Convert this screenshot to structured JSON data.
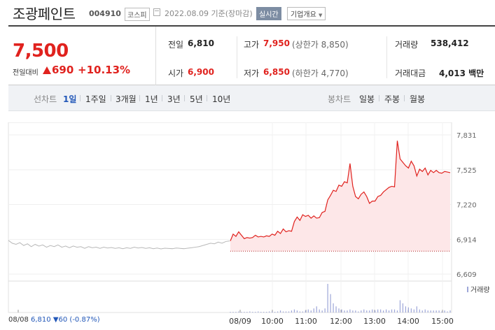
{
  "header": {
    "name": "조광페인트",
    "code": "004910",
    "market": "코스피",
    "date": "2022.08.09 기준(장마감)",
    "realtime": "실시간",
    "company_info": "기업개요"
  },
  "quote": {
    "price": "7,500",
    "change_label": "전일대비",
    "change_value": "690",
    "change_pct": "+10.13%",
    "prev_close_label": "전일",
    "prev_close": "6,810",
    "high_label": "고가",
    "high": "7,950",
    "upper_limit": "(상한가 8,850)",
    "volume_label": "거래량",
    "volume": "538,412",
    "open_label": "시가",
    "open": "6,900",
    "low_label": "저가",
    "low": "6,850",
    "lower_limit": "(하한가 4,770)",
    "amount_label": "거래대금",
    "amount": "4,013 백만"
  },
  "periods": {
    "line_label": "선차트",
    "line_items": [
      "1일",
      "1주일",
      "3개월",
      "1년",
      "3년",
      "5년",
      "10년"
    ],
    "selected": "1일",
    "candle_label": "봉차트",
    "candle_items": [
      "일봉",
      "주봉",
      "월봉"
    ]
  },
  "footer": {
    "prev_date": "08/08",
    "prev_info": "6,810 ▼60 (-0.87%)"
  },
  "colors": {
    "up": "#e0221e",
    "down": "#2257b8",
    "fill": "#fde7e8",
    "prev_line": "#b8b8b8",
    "volume": "#9da6d8"
  },
  "chart_data": {
    "type": "line",
    "title": "",
    "y_ticks": [
      "7,831",
      "7,525",
      "7,220",
      "6,914",
      "6,609"
    ],
    "y_tick_values": [
      7831,
      7525,
      7220,
      6914,
      6609
    ],
    "ylim": [
      6609,
      7831
    ],
    "x_ticks": [
      "08/08",
      "08/09",
      "10:00",
      "11:00",
      "12:00",
      "13:00",
      "14:00",
      "15:00"
    ],
    "reference_line": 6810,
    "grid": true,
    "volume_legend": "거래량",
    "series": [
      {
        "name": "08/08",
        "color": "#b8b8b8",
        "values": [
          6905,
          6880,
          6870,
          6885,
          6860,
          6875,
          6850,
          6870,
          6855,
          6865,
          6845,
          6860,
          6850,
          6865,
          6845,
          6855,
          6840,
          6855,
          6845,
          6850,
          6835,
          6850,
          6840,
          6845,
          6835,
          6845,
          6838,
          6842,
          6835,
          6840,
          6832,
          6840,
          6835,
          6845,
          6838,
          6842,
          6835,
          6840,
          6832,
          6838,
          6830,
          6836,
          6834,
          6832,
          6838,
          6835,
          6832,
          6836,
          6840,
          6845,
          6850,
          6860,
          6870,
          6880,
          6875,
          6890,
          6880,
          6895,
          6900
        ]
      },
      {
        "name": "08/09",
        "color": "#e0221e",
        "values": [
          6900,
          6960,
          6940,
          6980,
          6950,
          6920,
          6930,
          6925,
          6930,
          6950,
          6935,
          6940,
          6935,
          6945,
          6940,
          6960,
          6950,
          6985,
          6965,
          7005,
          6980,
          6990,
          6985,
          7070,
          7110,
          7080,
          7130,
          7115,
          7125,
          7100,
          7120,
          7100,
          7105,
          7150,
          7160,
          7260,
          7300,
          7345,
          7335,
          7390,
          7380,
          7420,
          7410,
          7580,
          7380,
          7290,
          7270,
          7310,
          7330,
          7290,
          7230,
          7250,
          7250,
          7290,
          7300,
          7330,
          7350,
          7370,
          7380,
          7375,
          7780,
          7620,
          7590,
          7560,
          7540,
          7600,
          7560,
          7470,
          7530,
          7510,
          7540,
          7480,
          7520,
          7500,
          7520,
          7500,
          7495,
          7510,
          7505,
          7500
        ]
      }
    ],
    "volume": [
      0,
      0,
      0,
      1,
      0,
      0,
      0,
      1,
      0,
      0,
      1,
      0,
      0,
      0,
      1,
      1,
      0,
      1,
      2,
      1,
      1,
      1,
      2,
      3,
      2,
      1,
      1,
      2,
      3,
      2,
      4,
      6,
      3,
      2,
      4,
      28,
      18,
      9,
      6,
      4,
      3,
      2,
      2,
      3,
      2,
      2,
      1,
      2,
      3,
      2,
      2,
      3,
      2,
      3,
      3,
      2,
      3,
      2,
      3,
      3,
      2,
      12,
      9,
      6,
      5,
      4,
      3,
      6,
      3,
      2,
      3,
      2,
      2,
      2,
      2,
      2,
      1,
      2,
      1,
      2
    ]
  }
}
